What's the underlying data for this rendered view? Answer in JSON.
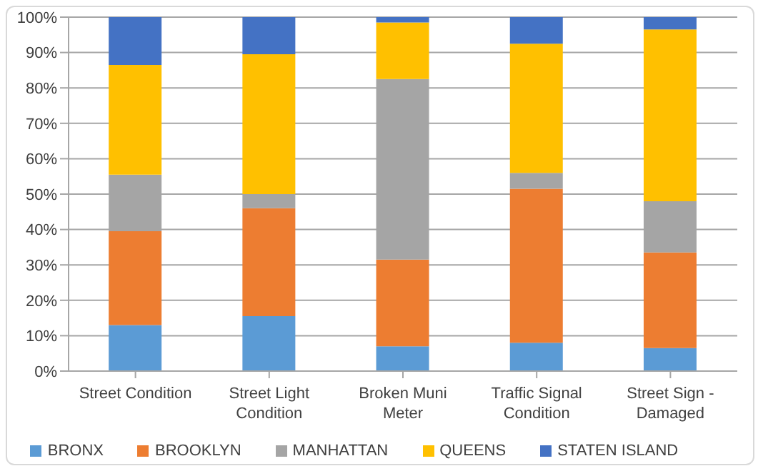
{
  "chart_data": {
    "type": "bar",
    "stacked": true,
    "categories": [
      "Street Condition",
      "Street Light Condition",
      "Broken Muni Meter",
      "Traffic Signal Condition",
      "Street Sign - Damaged"
    ],
    "series": [
      {
        "name": "BRONX",
        "color": "#5b9bd5",
        "values": [
          13,
          15.5,
          7,
          8,
          6.5
        ]
      },
      {
        "name": "BROOKLYN",
        "color": "#ed7d31",
        "values": [
          26.5,
          30.5,
          24.5,
          43.5,
          27
        ]
      },
      {
        "name": "MANHATTAN",
        "color": "#a5a5a5",
        "values": [
          16,
          4,
          51,
          4.5,
          14.5
        ]
      },
      {
        "name": "QUEENS",
        "color": "#ffc000",
        "values": [
          31,
          39.5,
          16,
          36.5,
          48.5
        ]
      },
      {
        "name": "STATEN ISLAND",
        "color": "#4472c4",
        "values": [
          13.5,
          10.5,
          1.5,
          7.5,
          3.5
        ]
      }
    ],
    "ylim": [
      0,
      100
    ],
    "yticks": [
      {
        "value": 0,
        "label": "0%"
      },
      {
        "value": 10,
        "label": "10%"
      },
      {
        "value": 20,
        "label": "20%"
      },
      {
        "value": 30,
        "label": "30%"
      },
      {
        "value": 40,
        "label": "40%"
      },
      {
        "value": 50,
        "label": "50%"
      },
      {
        "value": 60,
        "label": "60%"
      },
      {
        "value": 70,
        "label": "70%"
      },
      {
        "value": 80,
        "label": "80%"
      },
      {
        "value": 90,
        "label": "90%"
      },
      {
        "value": 100,
        "label": "100%"
      }
    ],
    "grid": "y",
    "legend": "bottom"
  }
}
